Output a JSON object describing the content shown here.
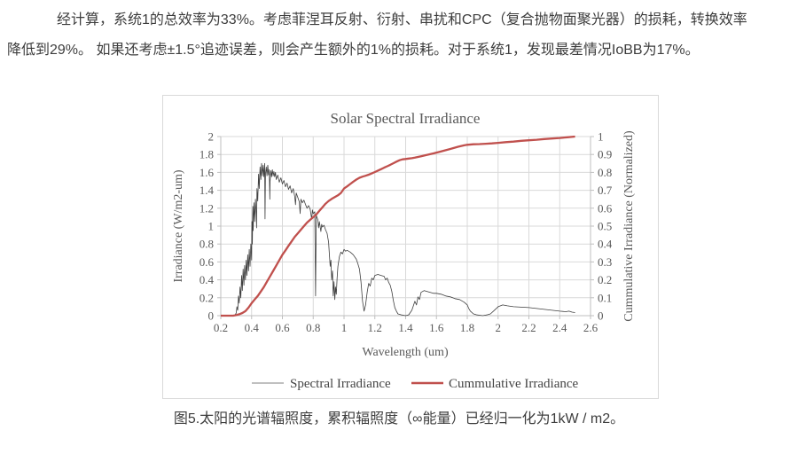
{
  "document": {
    "paragraph_line1": "经计算，系统1的总效率为33%。考虑菲涅耳反射、衍射、串扰和CPC（复合抛物面聚光器）的损耗，转换效率",
    "paragraph_line2": "降低到29%。 如果还考虑±1.5°追迹误差，则会产生额外的1%的损耗。对于系统1，发现最差情况IoBB为17%。",
    "caption": "图5.太阳的光谱辐照度，累积辐照度（∞能量）已经归一化为1kW / m2。"
  },
  "colors": {
    "grid": "#d9d9d9",
    "axis": "#bfbfbf",
    "chart_text": "#595959",
    "body_text": "#3d3d3d",
    "spectral_line": "#3f3f3f",
    "spectral_legend": "#9a9a9a",
    "cumulative_line": "#c0504d",
    "chart_border": "#dadada",
    "background": "#ffffff"
  },
  "chart_data": {
    "type": "line",
    "title": "Solar Spectral Irradiance",
    "xlabel": "Wavelength (um)",
    "ylabel_left": "Irradiance  (W/m2-um)",
    "ylabel_right": "Cummulative Irradiance (Normalized)",
    "grid": true,
    "legend_position": "bottom",
    "xlim": [
      0.2,
      2.6
    ],
    "ylim_left": [
      0,
      2
    ],
    "ylim_right": [
      0,
      1
    ],
    "x_tick_values": [
      0.2,
      0.4,
      0.6,
      0.8,
      1.0,
      1.2,
      1.4,
      1.6,
      1.8,
      2.0,
      2.2,
      2.4,
      2.6
    ],
    "x_tick_labels": [
      "0.2",
      "0.4",
      "0.6",
      "0.8",
      "1",
      "1.2",
      "1.4",
      "1.6",
      "1.8",
      "2",
      "2.2",
      "2.4",
      "2.6"
    ],
    "y_tick_values_left": [
      0,
      0.2,
      0.4,
      0.6,
      0.8,
      1.0,
      1.2,
      1.4,
      1.6,
      1.8,
      2.0
    ],
    "y_tick_labels_left": [
      "0",
      "0.2",
      "0.4",
      "0.6",
      "0.8",
      "1",
      "1.2",
      "1.4",
      "1.6",
      "1.8",
      "2"
    ],
    "y_tick_values_right": [
      0,
      0.1,
      0.2,
      0.3,
      0.4,
      0.5,
      0.6,
      0.7,
      0.8,
      0.9,
      1.0
    ],
    "y_tick_labels_right": [
      "0",
      "0.1",
      "0.2",
      "0.3",
      "0.4",
      "0.5",
      "0.6",
      "0.7",
      "0.8",
      "0.9",
      "1"
    ],
    "series": [
      {
        "id": "spectral",
        "name": "Spectral Irradiance",
        "axis": "left",
        "color": "#3f3f3f",
        "legend_color": "#9a9a9a",
        "width": 0.8,
        "legend_width": 1.2,
        "points": [
          [
            0.2,
            0
          ],
          [
            0.29,
            0
          ],
          [
            0.3,
            0.03
          ],
          [
            0.305,
            0.1
          ],
          [
            0.31,
            0.06
          ],
          [
            0.315,
            0.22
          ],
          [
            0.32,
            0.14
          ],
          [
            0.325,
            0.32
          ],
          [
            0.33,
            0.2
          ],
          [
            0.335,
            0.45
          ],
          [
            0.34,
            0.28
          ],
          [
            0.345,
            0.52
          ],
          [
            0.35,
            0.34
          ],
          [
            0.355,
            0.56
          ],
          [
            0.36,
            0.4
          ],
          [
            0.365,
            0.62
          ],
          [
            0.37,
            0.45
          ],
          [
            0.375,
            0.68
          ],
          [
            0.38,
            0.5
          ],
          [
            0.385,
            0.74
          ],
          [
            0.39,
            0.55
          ],
          [
            0.395,
            0.8
          ],
          [
            0.4,
            0.62
          ],
          [
            0.402,
            1.05
          ],
          [
            0.405,
            0.8
          ],
          [
            0.408,
            1.22
          ],
          [
            0.41,
            0.95
          ],
          [
            0.415,
            1.26
          ],
          [
            0.42,
            1.05
          ],
          [
            0.425,
            1.3
          ],
          [
            0.43,
            1.12
          ],
          [
            0.4325,
            0.98
          ],
          [
            0.435,
            1.42
          ],
          [
            0.44,
            1.28
          ],
          [
            0.445,
            1.58
          ],
          [
            0.45,
            1.42
          ],
          [
            0.455,
            1.66
          ],
          [
            0.46,
            1.52
          ],
          [
            0.465,
            1.7
          ],
          [
            0.47,
            1.56
          ],
          [
            0.475,
            1.68
          ],
          [
            0.48,
            1.55
          ],
          [
            0.485,
            1.7
          ],
          [
            0.487,
            1.08
          ],
          [
            0.49,
            1.58
          ],
          [
            0.495,
            1.66
          ],
          [
            0.5,
            1.56
          ],
          [
            0.505,
            1.68
          ],
          [
            0.51,
            1.57
          ],
          [
            0.515,
            1.63
          ],
          [
            0.518,
            1.3
          ],
          [
            0.52,
            1.5
          ],
          [
            0.525,
            1.62
          ],
          [
            0.53,
            1.55
          ],
          [
            0.535,
            1.63
          ],
          [
            0.54,
            1.56
          ],
          [
            0.545,
            1.61
          ],
          [
            0.55,
            1.55
          ],
          [
            0.555,
            1.6
          ],
          [
            0.56,
            1.52
          ],
          [
            0.57,
            1.57
          ],
          [
            0.58,
            1.49
          ],
          [
            0.59,
            1.54
          ],
          [
            0.6,
            1.47
          ],
          [
            0.61,
            1.51
          ],
          [
            0.62,
            1.44
          ],
          [
            0.63,
            1.48
          ],
          [
            0.64,
            1.41
          ],
          [
            0.65,
            1.45
          ],
          [
            0.66,
            1.37
          ],
          [
            0.67,
            1.42
          ],
          [
            0.68,
            1.33
          ],
          [
            0.685,
            1.24
          ],
          [
            0.69,
            1.37
          ],
          [
            0.7,
            1.32
          ],
          [
            0.71,
            1.27
          ],
          [
            0.715,
            1.14
          ],
          [
            0.72,
            1.3
          ],
          [
            0.73,
            1.26
          ],
          [
            0.74,
            1.29
          ],
          [
            0.75,
            1.24
          ],
          [
            0.76,
            1.2
          ],
          [
            0.77,
            1.23
          ],
          [
            0.78,
            1.19
          ],
          [
            0.79,
            1.08
          ],
          [
            0.795,
            1.18
          ],
          [
            0.8,
            1.14
          ],
          [
            0.81,
            1.16
          ],
          [
            0.815,
            0.22
          ],
          [
            0.82,
            1.12
          ],
          [
            0.83,
            1.07
          ],
          [
            0.835,
            0.98
          ],
          [
            0.84,
            1.05
          ],
          [
            0.85,
            0.94
          ],
          [
            0.855,
            1.02
          ],
          [
            0.86,
            0.99
          ],
          [
            0.87,
            1.01
          ],
          [
            0.88,
            0.96
          ],
          [
            0.89,
            0.92
          ],
          [
            0.9,
            0.82
          ],
          [
            0.905,
            0.68
          ],
          [
            0.91,
            0.55
          ],
          [
            0.915,
            0.62
          ],
          [
            0.92,
            0.4
          ],
          [
            0.925,
            0.5
          ],
          [
            0.93,
            0.22
          ],
          [
            0.935,
            0.38
          ],
          [
            0.94,
            0.18
          ],
          [
            0.945,
            0.32
          ],
          [
            0.95,
            0.24
          ],
          [
            0.955,
            0.42
          ],
          [
            0.96,
            0.55
          ],
          [
            0.97,
            0.66
          ],
          [
            0.98,
            0.71
          ],
          [
            0.99,
            0.69
          ],
          [
            1.0,
            0.74
          ],
          [
            1.01,
            0.72
          ],
          [
            1.02,
            0.73
          ],
          [
            1.04,
            0.71
          ],
          [
            1.06,
            0.68
          ],
          [
            1.08,
            0.63
          ],
          [
            1.09,
            0.58
          ],
          [
            1.1,
            0.52
          ],
          [
            1.11,
            0.38
          ],
          [
            1.12,
            0.16
          ],
          [
            1.13,
            0.05
          ],
          [
            1.14,
            0.12
          ],
          [
            1.15,
            0.26
          ],
          [
            1.16,
            0.36
          ],
          [
            1.17,
            0.33
          ],
          [
            1.18,
            0.42
          ],
          [
            1.19,
            0.4
          ],
          [
            1.2,
            0.45
          ],
          [
            1.22,
            0.46
          ],
          [
            1.24,
            0.45
          ],
          [
            1.26,
            0.44
          ],
          [
            1.27,
            0.4
          ],
          [
            1.28,
            0.42
          ],
          [
            1.29,
            0.37
          ],
          [
            1.3,
            0.34
          ],
          [
            1.31,
            0.27
          ],
          [
            1.32,
            0.17
          ],
          [
            1.33,
            0.09
          ],
          [
            1.34,
            0.05
          ],
          [
            1.35,
            0.02
          ],
          [
            1.37,
            0.01
          ],
          [
            1.4,
            0.0
          ],
          [
            1.42,
            0.01
          ],
          [
            1.44,
            0.06
          ],
          [
            1.45,
            0.11
          ],
          [
            1.46,
            0.16
          ],
          [
            1.47,
            0.12
          ],
          [
            1.48,
            0.21
          ],
          [
            1.49,
            0.18
          ],
          [
            1.5,
            0.26
          ],
          [
            1.52,
            0.28
          ],
          [
            1.54,
            0.27
          ],
          [
            1.56,
            0.26
          ],
          [
            1.58,
            0.25
          ],
          [
            1.6,
            0.25
          ],
          [
            1.63,
            0.24
          ],
          [
            1.66,
            0.22
          ],
          [
            1.69,
            0.21
          ],
          [
            1.72,
            0.19
          ],
          [
            1.75,
            0.18
          ],
          [
            1.78,
            0.15
          ],
          [
            1.8,
            0.12
          ],
          [
            1.81,
            0.08
          ],
          [
            1.82,
            0.05
          ],
          [
            1.84,
            0.02
          ],
          [
            1.86,
            0.01
          ],
          [
            1.9,
            0.0
          ],
          [
            1.93,
            0.01
          ],
          [
            1.95,
            0.02
          ],
          [
            1.97,
            0.05
          ],
          [
            2.0,
            0.1
          ],
          [
            2.03,
            0.12
          ],
          [
            2.06,
            0.11
          ],
          [
            2.1,
            0.1
          ],
          [
            2.15,
            0.095
          ],
          [
            2.2,
            0.09
          ],
          [
            2.25,
            0.08
          ],
          [
            2.3,
            0.07
          ],
          [
            2.35,
            0.06
          ],
          [
            2.4,
            0.05
          ],
          [
            2.44,
            0.045
          ],
          [
            2.46,
            0.05
          ],
          [
            2.48,
            0.04
          ],
          [
            2.5,
            0.035
          ]
        ]
      },
      {
        "id": "cumulative",
        "name": "Cummulative Irradiance",
        "axis": "right",
        "color": "#c0504d",
        "legend_color": "#c0504d",
        "width": 2.3,
        "legend_width": 2.6,
        "points": [
          [
            0.2,
            0
          ],
          [
            0.28,
            0
          ],
          [
            0.3,
            0.003
          ],
          [
            0.32,
            0.008
          ],
          [
            0.34,
            0.015
          ],
          [
            0.36,
            0.025
          ],
          [
            0.38,
            0.045
          ],
          [
            0.4,
            0.07
          ],
          [
            0.42,
            0.09
          ],
          [
            0.44,
            0.11
          ],
          [
            0.46,
            0.135
          ],
          [
            0.48,
            0.16
          ],
          [
            0.5,
            0.19
          ],
          [
            0.52,
            0.22
          ],
          [
            0.54,
            0.25
          ],
          [
            0.56,
            0.28
          ],
          [
            0.58,
            0.31
          ],
          [
            0.6,
            0.34
          ],
          [
            0.62,
            0.365
          ],
          [
            0.64,
            0.39
          ],
          [
            0.66,
            0.415
          ],
          [
            0.68,
            0.44
          ],
          [
            0.7,
            0.46
          ],
          [
            0.72,
            0.48
          ],
          [
            0.74,
            0.5
          ],
          [
            0.76,
            0.52
          ],
          [
            0.78,
            0.535
          ],
          [
            0.8,
            0.55
          ],
          [
            0.82,
            0.565
          ],
          [
            0.84,
            0.585
          ],
          [
            0.86,
            0.605
          ],
          [
            0.88,
            0.625
          ],
          [
            0.9,
            0.64
          ],
          [
            0.92,
            0.652
          ],
          [
            0.94,
            0.662
          ],
          [
            0.96,
            0.672
          ],
          [
            0.98,
            0.685
          ],
          [
            1.0,
            0.71
          ],
          [
            1.02,
            0.722
          ],
          [
            1.04,
            0.735
          ],
          [
            1.06,
            0.748
          ],
          [
            1.08,
            0.76
          ],
          [
            1.1,
            0.77
          ],
          [
            1.12,
            0.776
          ],
          [
            1.14,
            0.781
          ],
          [
            1.16,
            0.787
          ],
          [
            1.18,
            0.794
          ],
          [
            1.2,
            0.802
          ],
          [
            1.22,
            0.81
          ],
          [
            1.24,
            0.818
          ],
          [
            1.26,
            0.826
          ],
          [
            1.28,
            0.834
          ],
          [
            1.3,
            0.842
          ],
          [
            1.32,
            0.851
          ],
          [
            1.34,
            0.86
          ],
          [
            1.36,
            0.868
          ],
          [
            1.38,
            0.873
          ],
          [
            1.4,
            0.875
          ],
          [
            1.42,
            0.877
          ],
          [
            1.44,
            0.879
          ],
          [
            1.46,
            0.882
          ],
          [
            1.48,
            0.886
          ],
          [
            1.5,
            0.89
          ],
          [
            1.54,
            0.898
          ],
          [
            1.58,
            0.906
          ],
          [
            1.62,
            0.915
          ],
          [
            1.66,
            0.924
          ],
          [
            1.7,
            0.933
          ],
          [
            1.74,
            0.943
          ],
          [
            1.78,
            0.951
          ],
          [
            1.8,
            0.954
          ],
          [
            1.84,
            0.957
          ],
          [
            1.88,
            0.958
          ],
          [
            1.92,
            0.96
          ],
          [
            1.96,
            0.962
          ],
          [
            2.0,
            0.965
          ],
          [
            2.05,
            0.969
          ],
          [
            2.1,
            0.972
          ],
          [
            2.15,
            0.976
          ],
          [
            2.2,
            0.979
          ],
          [
            2.25,
            0.982
          ],
          [
            2.3,
            0.986
          ],
          [
            2.35,
            0.989
          ],
          [
            2.4,
            0.992
          ],
          [
            2.45,
            0.996
          ],
          [
            2.5,
            1.0
          ]
        ]
      }
    ]
  }
}
